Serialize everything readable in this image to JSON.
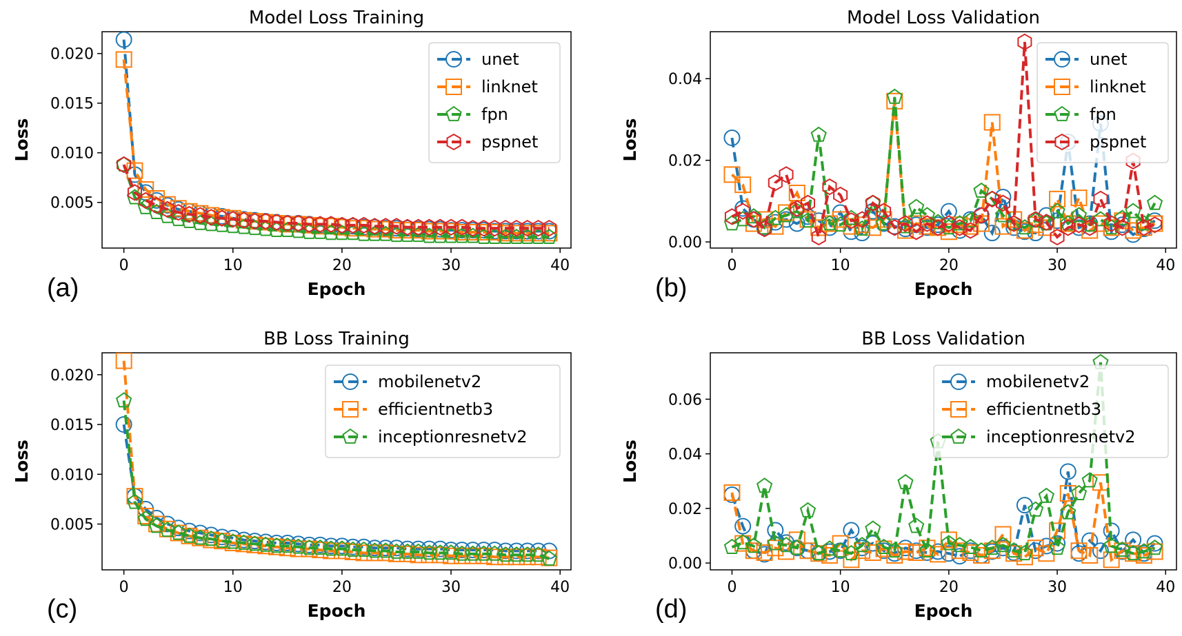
{
  "colors": {
    "blue": "#1f77b4",
    "orange": "#ff7f0e",
    "green": "#2ca02c",
    "red": "#d62728"
  },
  "chart_data": [
    {
      "panel": "(a)",
      "type": "line",
      "title": "Model Loss Training",
      "xlabel": "Epoch",
      "ylabel": "Loss",
      "xlim": [
        -2,
        41
      ],
      "ylim": [
        0.0004,
        0.0222
      ],
      "xticks": [
        0,
        10,
        20,
        30,
        40
      ],
      "xtick_labels": [
        "0",
        "10",
        "20",
        "30",
        "40"
      ],
      "yticks": [
        0.005,
        0.01,
        0.015,
        0.02
      ],
      "ytick_labels": [
        "0.005",
        "0.010",
        "0.015",
        "0.020"
      ],
      "legend_position": "top-right",
      "series": [
        {
          "name": "unet",
          "color": "blue",
          "marker": "circle",
          "y": [
            0.0214,
            0.0078,
            0.006,
            0.0052,
            0.0047,
            0.0043,
            0.0041,
            0.0039,
            0.0037,
            0.0036,
            0.0034,
            0.0033,
            0.0032,
            0.0031,
            0.003,
            0.0029,
            0.0029,
            0.0028,
            0.0027,
            0.0027,
            0.0026,
            0.0026,
            0.0025,
            0.0025,
            0.0024,
            0.0024,
            0.0024,
            0.0023,
            0.0023,
            0.0023,
            0.0022,
            0.0022,
            0.0022,
            0.0022,
            0.0021,
            0.0021,
            0.0021,
            0.0021,
            0.0021,
            0.0021
          ]
        },
        {
          "name": "linknet",
          "color": "orange",
          "marker": "square",
          "y": [
            0.0194,
            0.0082,
            0.0063,
            0.0054,
            0.0048,
            0.0044,
            0.0041,
            0.0039,
            0.0037,
            0.0035,
            0.0034,
            0.0032,
            0.0031,
            0.003,
            0.0029,
            0.0028,
            0.0028,
            0.0027,
            0.0026,
            0.0026,
            0.0025,
            0.0024,
            0.0024,
            0.0023,
            0.0023,
            0.0022,
            0.0022,
            0.0022,
            0.0021,
            0.0021,
            0.0021,
            0.002,
            0.002,
            0.002,
            0.002,
            0.0019,
            0.0019,
            0.0019,
            0.0019,
            0.0019
          ]
        },
        {
          "name": "fpn",
          "color": "green",
          "marker": "pentagon",
          "y": [
            0.0088,
            0.0055,
            0.0045,
            0.004,
            0.0036,
            0.0033,
            0.0031,
            0.0029,
            0.0028,
            0.0027,
            0.0026,
            0.0025,
            0.0024,
            0.0023,
            0.0022,
            0.0022,
            0.0021,
            0.002,
            0.002,
            0.0019,
            0.0019,
            0.0019,
            0.0018,
            0.0018,
            0.0018,
            0.0017,
            0.0017,
            0.0017,
            0.0016,
            0.0016,
            0.0016,
            0.0016,
            0.0016,
            0.0015,
            0.0015,
            0.0015,
            0.0015,
            0.0015,
            0.0015,
            0.0015
          ]
        },
        {
          "name": "pspnet",
          "color": "red",
          "marker": "hexagon",
          "y": [
            0.0088,
            0.006,
            0.0052,
            0.0047,
            0.0043,
            0.004,
            0.0038,
            0.0037,
            0.0035,
            0.0034,
            0.0033,
            0.0032,
            0.0031,
            0.0031,
            0.003,
            0.0029,
            0.0029,
            0.0028,
            0.0028,
            0.0028,
            0.0027,
            0.0027,
            0.0027,
            0.0026,
            0.0026,
            0.0026,
            0.0025,
            0.0025,
            0.0025,
            0.0025,
            0.0025,
            0.0025,
            0.0024,
            0.0024,
            0.0024,
            0.0024,
            0.0024,
            0.0024,
            0.0024,
            0.0024
          ]
        }
      ]
    },
    {
      "panel": "(b)",
      "type": "line",
      "title": "Model Loss Validation",
      "xlabel": "Epoch",
      "ylabel": "Loss",
      "xlim": [
        -2,
        41
      ],
      "ylim": [
        -0.0015,
        0.0515
      ],
      "xticks": [
        0,
        10,
        20,
        30,
        40
      ],
      "xtick_labels": [
        "0",
        "10",
        "20",
        "30",
        "40"
      ],
      "yticks": [
        0.0,
        0.02,
        0.04
      ],
      "ytick_labels": [
        "0.00",
        "0.02",
        "0.04"
      ],
      "legend_position": "top-right",
      "series": [
        {
          "name": "unet",
          "color": "blue",
          "marker": "circle",
          "y": [
            0.0255,
            0.0082,
            0.0055,
            0.0035,
            0.0048,
            0.0055,
            0.0045,
            0.0062,
            0.0052,
            0.0035,
            0.0072,
            0.0025,
            0.0022,
            0.0075,
            0.0045,
            0.0038,
            0.0032,
            0.0042,
            0.0035,
            0.0042,
            0.0075,
            0.0028,
            0.0055,
            0.0065,
            0.0022,
            0.011,
            0.0035,
            0.0025,
            0.0022,
            0.0065,
            0.0052,
            0.0245,
            0.0035,
            0.0045,
            0.029,
            0.0025,
            0.0042,
            0.0018,
            0.0032,
            0.0052
          ]
        },
        {
          "name": "linknet",
          "color": "orange",
          "marker": "square",
          "y": [
            0.0165,
            0.014,
            0.0045,
            0.0055,
            0.0038,
            0.0072,
            0.012,
            0.0055,
            0.0035,
            0.0045,
            0.0055,
            0.0038,
            0.0042,
            0.0035,
            0.0055,
            0.0345,
            0.0028,
            0.0045,
            0.0038,
            0.0035,
            0.0025,
            0.0042,
            0.0038,
            0.0045,
            0.0293,
            0.0038,
            0.0055,
            0.0028,
            0.0042,
            0.0035,
            0.0105,
            0.0045,
            0.0108,
            0.0028,
            0.0045,
            0.0035,
            0.0052,
            0.0028,
            0.0035,
            0.0045
          ]
        },
        {
          "name": "fpn",
          "color": "green",
          "marker": "pentagon",
          "y": [
            0.0045,
            0.0055,
            0.0062,
            0.0035,
            0.0058,
            0.0065,
            0.0075,
            0.0052,
            0.0262,
            0.0045,
            0.0042,
            0.0058,
            0.0032,
            0.0095,
            0.0045,
            0.0355,
            0.0038,
            0.0085,
            0.0065,
            0.0048,
            0.0035,
            0.0045,
            0.0052,
            0.0125,
            0.0105,
            0.0065,
            0.0045,
            0.0035,
            0.0052,
            0.0045,
            0.0075,
            0.0045,
            0.0065,
            0.0042,
            0.0055,
            0.0035,
            0.0058,
            0.0075,
            0.0045,
            0.0095
          ]
        },
        {
          "name": "pspnet",
          "color": "red",
          "marker": "hexagon",
          "y": [
            0.0062,
            0.0075,
            0.0055,
            0.0032,
            0.0145,
            0.0165,
            0.0082,
            0.0095,
            0.0012,
            0.0135,
            0.0115,
            0.0052,
            0.0055,
            0.0095,
            0.0075,
            0.0035,
            0.0045,
            0.0025,
            0.0045,
            0.0035,
            0.0045,
            0.0035,
            0.0028,
            0.0065,
            0.0105,
            0.0095,
            0.0045,
            0.049,
            0.0055,
            0.0048,
            0.0012,
            0.0035,
            0.0042,
            0.0035,
            0.0105,
            0.0045,
            0.0035,
            0.0198,
            0.0035,
            0.0042
          ]
        }
      ]
    },
    {
      "panel": "(c)",
      "type": "line",
      "title": "BB Loss Training",
      "xlabel": "Epoch",
      "ylabel": "Loss",
      "xlim": [
        -2,
        41
      ],
      "ylim": [
        0.0004,
        0.0222
      ],
      "xticks": [
        0,
        10,
        20,
        30,
        40
      ],
      "xtick_labels": [
        "0",
        "10",
        "20",
        "30",
        "40"
      ],
      "yticks": [
        0.005,
        0.01,
        0.015,
        0.02
      ],
      "ytick_labels": [
        "0.005",
        "0.010",
        "0.015",
        "0.020"
      ],
      "legend_position": "top-right",
      "series": [
        {
          "name": "mobilenetv2",
          "color": "blue",
          "marker": "circle",
          "y": [
            0.015,
            0.0078,
            0.0065,
            0.0056,
            0.005,
            0.0046,
            0.0043,
            0.0041,
            0.0039,
            0.0037,
            0.0036,
            0.0034,
            0.0033,
            0.0032,
            0.0031,
            0.0031,
            0.003,
            0.0029,
            0.0029,
            0.0028,
            0.0028,
            0.0027,
            0.0027,
            0.0026,
            0.0026,
            0.0026,
            0.0025,
            0.0025,
            0.0025,
            0.0025,
            0.0024,
            0.0024,
            0.0024,
            0.0024,
            0.0024,
            0.0023,
            0.0023,
            0.0023,
            0.0023,
            0.0023
          ]
        },
        {
          "name": "efficientnetb3",
          "color": "orange",
          "marker": "square",
          "y": [
            0.0214,
            0.0078,
            0.0058,
            0.005,
            0.0045,
            0.0041,
            0.0038,
            0.0036,
            0.0034,
            0.0033,
            0.0031,
            0.003,
            0.0029,
            0.0028,
            0.0027,
            0.0026,
            0.0025,
            0.0025,
            0.0024,
            0.0023,
            0.0023,
            0.0022,
            0.0021,
            0.0021,
            0.0021,
            0.002,
            0.002,
            0.0019,
            0.0019,
            0.0019,
            0.0018,
            0.0018,
            0.0018,
            0.0018,
            0.0017,
            0.0017,
            0.0017,
            0.0017,
            0.0017,
            0.0016
          ]
        },
        {
          "name": "inceptionresnetv2",
          "color": "green",
          "marker": "pentagon",
          "y": [
            0.0174,
            0.0072,
            0.0055,
            0.0048,
            0.0044,
            0.0041,
            0.0038,
            0.0036,
            0.0035,
            0.0033,
            0.0032,
            0.0031,
            0.003,
            0.0029,
            0.0028,
            0.0028,
            0.0027,
            0.0026,
            0.0026,
            0.0025,
            0.0025,
            0.0024,
            0.0024,
            0.0023,
            0.0023,
            0.0022,
            0.0022,
            0.0022,
            0.0021,
            0.0021,
            0.0021,
            0.002,
            0.002,
            0.002,
            0.002,
            0.0019,
            0.0019,
            0.0019,
            0.0019,
            0.0015
          ]
        }
      ]
    },
    {
      "panel": "(d)",
      "type": "line",
      "title": "BB Loss Validation",
      "xlabel": "Epoch",
      "ylabel": "Loss",
      "xlim": [
        -2,
        41
      ],
      "ylim": [
        -0.0025,
        0.077
      ],
      "xticks": [
        0,
        10,
        20,
        30,
        40
      ],
      "xtick_labels": [
        "0",
        "10",
        "20",
        "30",
        "40"
      ],
      "yticks": [
        0.0,
        0.02,
        0.04,
        0.06
      ],
      "ytick_labels": [
        "0.00",
        "0.02",
        "0.04",
        "0.06"
      ],
      "legend_position": "top-right",
      "series": [
        {
          "name": "mobilenetv2",
          "color": "blue",
          "marker": "circle",
          "y": [
            0.025,
            0.0135,
            0.0045,
            0.0032,
            0.012,
            0.0075,
            0.0055,
            0.0045,
            0.0035,
            0.0042,
            0.0045,
            0.012,
            0.0055,
            0.0072,
            0.0045,
            0.0035,
            0.0055,
            0.0045,
            0.0038,
            0.0042,
            0.0035,
            0.0025,
            0.0045,
            0.0028,
            0.0042,
            0.0055,
            0.0038,
            0.0212,
            0.0045,
            0.0062,
            0.0072,
            0.0335,
            0.0035,
            0.0082,
            0.0045,
            0.0118,
            0.0042,
            0.0085,
            0.0035,
            0.0072
          ]
        },
        {
          "name": "efficientnetb3",
          "color": "orange",
          "marker": "square",
          "y": [
            0.0258,
            0.0072,
            0.0045,
            0.0038,
            0.0055,
            0.0042,
            0.0085,
            0.0045,
            0.0035,
            0.0028,
            0.0072,
            0.0012,
            0.0045,
            0.0038,
            0.0052,
            0.0028,
            0.0042,
            0.0038,
            0.0055,
            0.0032,
            0.0085,
            0.0045,
            0.0038,
            0.0028,
            0.0045,
            0.0105,
            0.0035,
            0.0022,
            0.0055,
            0.0035,
            0.0118,
            0.0255,
            0.0045,
            0.0028,
            0.0295,
            0.0012,
            0.0045,
            0.0035,
            0.0028,
            0.0042
          ]
        },
        {
          "name": "inceptionresnetv2",
          "color": "green",
          "marker": "pentagon",
          "y": [
            0.0058,
            0.0075,
            0.0062,
            0.0282,
            0.0072,
            0.0065,
            0.0055,
            0.0192,
            0.0035,
            0.0052,
            0.0045,
            0.0035,
            0.0065,
            0.0125,
            0.0058,
            0.0045,
            0.0295,
            0.0135,
            0.0045,
            0.0445,
            0.0072,
            0.0065,
            0.0058,
            0.0045,
            0.0055,
            0.0065,
            0.0045,
            0.0035,
            0.0195,
            0.0245,
            0.0055,
            0.0185,
            0.0255,
            0.0302,
            0.0735,
            0.0062,
            0.0048,
            0.0035,
            0.0042,
            0.0055
          ]
        }
      ]
    }
  ]
}
